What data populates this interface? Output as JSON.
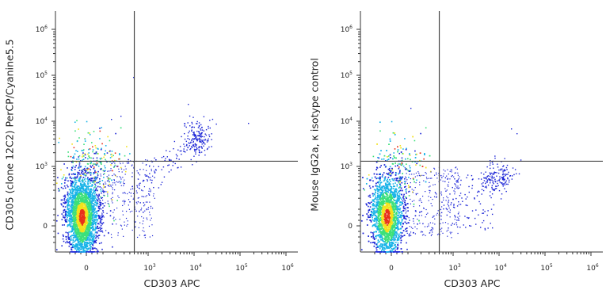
{
  "chart_data": [
    {
      "type": "scatter",
      "plot_style": "flow cytometry density dot plot (blue to red density colouring)",
      "xlabel": "CD303 APC",
      "ylabel": "CD305 (clone 12C2) PerCP/Cyanine5.5",
      "x_scale": "biexponential",
      "y_scale": "biexponential",
      "x_ticks": [
        "0",
        "10^3",
        "10^4",
        "10^5",
        "10^6"
      ],
      "y_ticks": [
        "0",
        "10^3",
        "10^4",
        "10^5",
        "10^6"
      ],
      "quadrant_gate": {
        "x": 500,
        "y": 1300
      },
      "populations": [
        {
          "name": "main",
          "center": [
            0,
            0
          ],
          "density": "high"
        },
        {
          "name": "double-positive",
          "center": [
            12000,
            4000
          ],
          "density": "low"
        }
      ]
    },
    {
      "type": "scatter",
      "plot_style": "flow cytometry density dot plot (blue to red density colouring)",
      "xlabel": "CD303 APC",
      "ylabel": "Mouse IgG2a, κ isotype control",
      "x_scale": "biexponential",
      "y_scale": "biexponential",
      "x_ticks": [
        "0",
        "10^3",
        "10^4",
        "10^5",
        "10^6"
      ],
      "y_ticks": [
        "0",
        "10^3",
        "10^4",
        "10^5",
        "10^6"
      ],
      "quadrant_gate": {
        "x": 500,
        "y": 1300
      },
      "populations": [
        {
          "name": "main",
          "center": [
            0,
            0
          ],
          "density": "high"
        },
        {
          "name": "CD303-positive",
          "center": [
            12000,
            400
          ],
          "density": "low"
        }
      ]
    }
  ],
  "colors": {
    "density_low": "#1b24d6",
    "density_mid": "#19b4e8",
    "density_midhigh": "#3ce07a",
    "density_high": "#f2e21c",
    "density_peak": "#e8311b",
    "axis": "#333333",
    "gate": "#444444"
  }
}
